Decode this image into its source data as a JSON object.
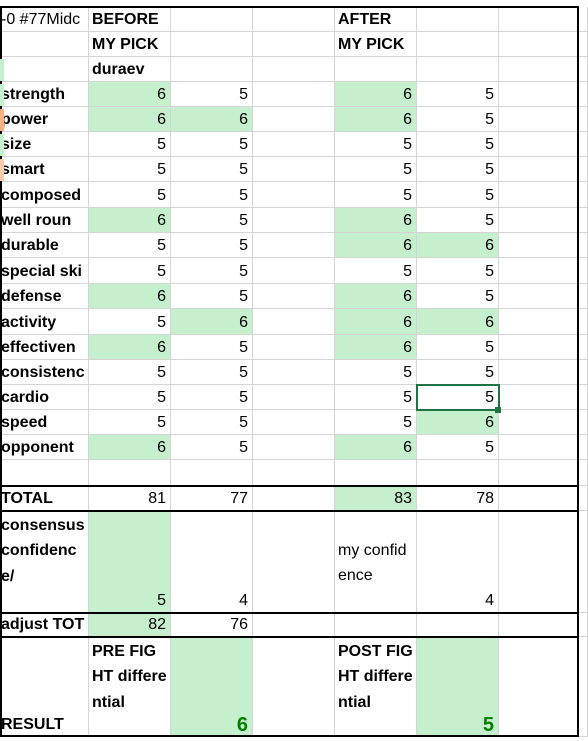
{
  "header": {
    "top_left": "-0 #77Midc",
    "before": "BEFORE",
    "after": "AFTER",
    "my_pick_before": "MY PICK",
    "my_pick_after": "MY PICK",
    "pick_name": "duraev"
  },
  "stats": [
    {
      "label": "strength",
      "b1": "6",
      "b2": "5",
      "a1": "6",
      "a2": "5"
    },
    {
      "label": "power",
      "b1": "6",
      "b2": "6",
      "a1": "6",
      "a2": "5"
    },
    {
      "label": "size",
      "b1": "5",
      "b2": "5",
      "a1": "5",
      "a2": "5"
    },
    {
      "label": "smart",
      "b1": "5",
      "b2": "5",
      "a1": "5",
      "a2": "5"
    },
    {
      "label": "composed",
      "b1": "5",
      "b2": "5",
      "a1": "5",
      "a2": "5"
    },
    {
      "label": "well roun",
      "b1": "6",
      "b2": "5",
      "a1": "6",
      "a2": "5"
    },
    {
      "label": "durable",
      "b1": "5",
      "b2": "5",
      "a1": "6",
      "a2": "6"
    },
    {
      "label": "special ski",
      "b1": "5",
      "b2": "5",
      "a1": "5",
      "a2": "5"
    },
    {
      "label": "defense",
      "b1": "6",
      "b2": "5",
      "a1": "6",
      "a2": "5"
    },
    {
      "label": "activity",
      "b1": "5",
      "b2": "6",
      "a1": "6",
      "a2": "6"
    },
    {
      "label": "effectiven",
      "b1": "6",
      "b2": "5",
      "a1": "6",
      "a2": "5"
    },
    {
      "label": "consistenc",
      "b1": "5",
      "b2": "5",
      "a1": "5",
      "a2": "5"
    },
    {
      "label": "cardio",
      "b1": "5",
      "b2": "5",
      "a1": "5",
      "a2": "5"
    },
    {
      "label": "speed",
      "b1": "5",
      "b2": "5",
      "a1": "5",
      "a2": "6"
    },
    {
      "label": "opponent",
      "b1": "6",
      "b2": "5",
      "a1": "6",
      "a2": "5"
    }
  ],
  "total": {
    "label": "TOTAL",
    "b1": "81",
    "b2": "77",
    "a1": "83",
    "a2": "78"
  },
  "confidence": {
    "label": "consensus confidence/",
    "b1": "5",
    "b2": "4",
    "after_label": "my confidence",
    "a2": "4"
  },
  "adjust": {
    "label": "adjust TOT",
    "b1": "82",
    "b2": "76"
  },
  "result": {
    "label": "RESULT",
    "pre_label": "PRE FIGHT differential",
    "pre_value": "6",
    "post_label": "POST FIGHT differential",
    "post_value": "5"
  },
  "colors": {
    "highlight": "#c6efce",
    "grid": "#d4d4d4",
    "result_value": "#008000",
    "selected_cell": "#217346"
  }
}
